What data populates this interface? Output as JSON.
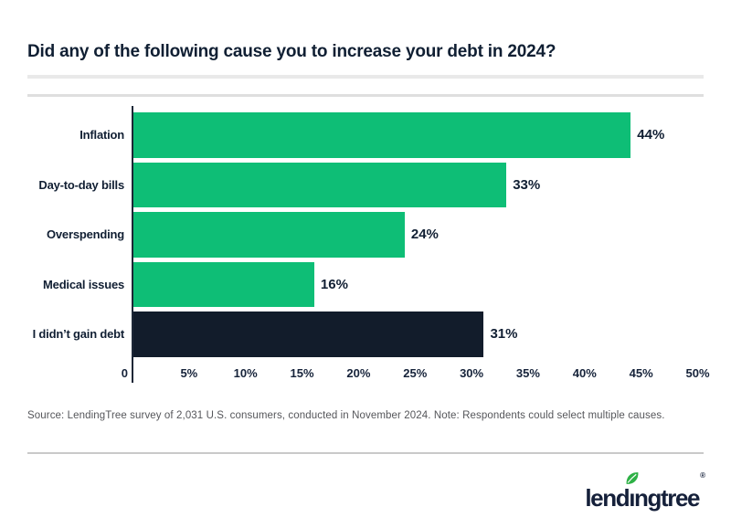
{
  "page": {
    "title": "Did any of the following cause you to increase your debt in 2024?",
    "source_note": "Source: LendingTree survey of 2,031 U.S. consumers, conducted in November 2024. Note: Respondents could select multiple causes.",
    "logo": {
      "text": "lendingtree",
      "registered_mark": "®",
      "leaf_icon": "leaf-icon"
    }
  },
  "colors": {
    "bar_green": "#0ebe76",
    "bar_navy": "#121c2b",
    "text_navy": "#111f33",
    "axis_navy": "#1d2737",
    "divider_light": "#e9e9e9",
    "divider_footer": "#c9c9c9",
    "source_gray": "#55565a",
    "logo_navy": "#15203a",
    "leaf_green": "#2eb146"
  },
  "chart_data": {
    "type": "bar",
    "orientation": "horizontal",
    "title": "Did any of the following cause you to increase your debt in 2024?",
    "categories": [
      "Inflation",
      "Day-to-day bills",
      "Overspending",
      "Medical issues",
      "I didn’t gain debt"
    ],
    "values": [
      44,
      33,
      24,
      16,
      31
    ],
    "value_labels": [
      "44%",
      "33%",
      "24%",
      "16%",
      "31%"
    ],
    "bar_color_keys": [
      "bar_green",
      "bar_green",
      "bar_green",
      "bar_green",
      "bar_navy"
    ],
    "x_tick_labels": [
      "0",
      "5%",
      "10%",
      "15%",
      "20%",
      "25%",
      "30%",
      "35%",
      "40%",
      "45%",
      "50%"
    ],
    "x_tick_values": [
      0,
      5,
      10,
      15,
      20,
      25,
      30,
      35,
      40,
      45,
      50
    ],
    "xlim": [
      0,
      50
    ],
    "xlabel": "",
    "ylabel": "",
    "grid": false,
    "legend": false
  }
}
